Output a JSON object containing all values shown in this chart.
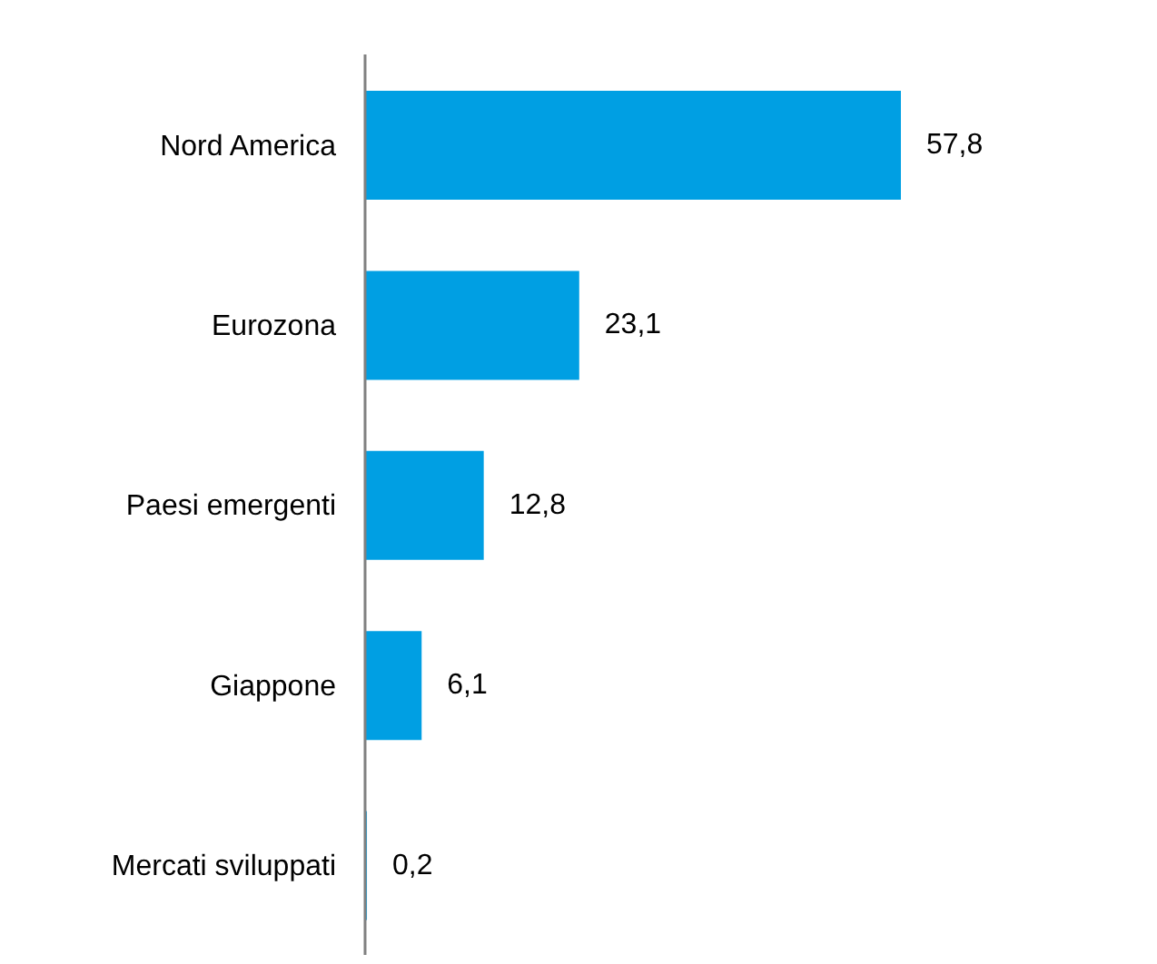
{
  "chart_data": {
    "type": "bar",
    "orientation": "horizontal",
    "categories": [
      "Nord America",
      "Eurozona",
      "Paesi emergenti",
      "Giappone",
      "Mercati sviluppati"
    ],
    "values": [
      57.8,
      23.1,
      12.8,
      6.1,
      0.2
    ],
    "value_labels": [
      "57,8",
      "23,1",
      "12,8",
      "6,1",
      "0,2"
    ],
    "color": "#009fe3",
    "grid": false,
    "legend": false
  }
}
